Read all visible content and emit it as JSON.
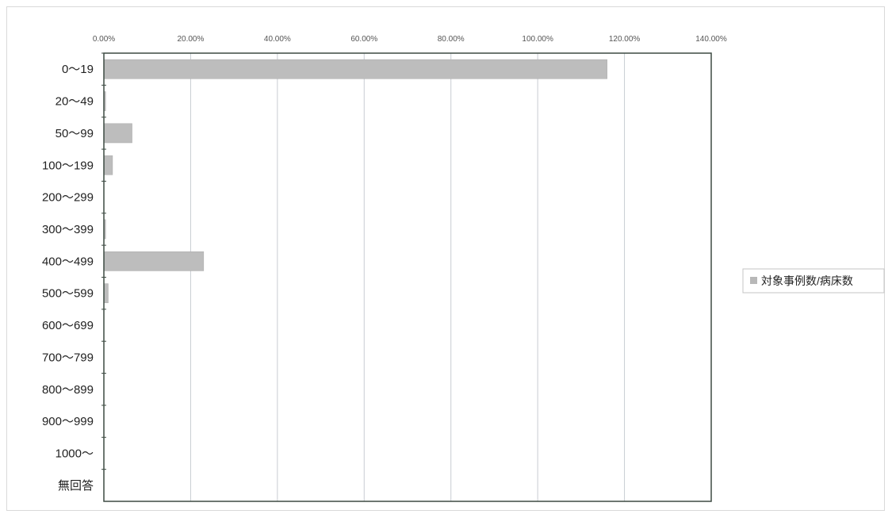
{
  "chart_data": {
    "type": "bar",
    "orientation": "horizontal",
    "categories": [
      "0～19",
      "20～49",
      "50～99",
      "100～199",
      "200～299",
      "300～399",
      "400～499",
      "500～599",
      "600～699",
      "700～799",
      "800～899",
      "900～999",
      "1000～",
      "無回答"
    ],
    "series": [
      {
        "name": "対象事例数/病床数",
        "values": [
          116.0,
          0.4,
          6.5,
          2.0,
          0.0,
          0.4,
          23.0,
          1.0,
          0.0,
          0.0,
          0.0,
          0.0,
          0.0,
          0.0
        ],
        "color": "#bdbdbd"
      }
    ],
    "x_ticks": [
      "0.00%",
      "20.00%",
      "40.00%",
      "60.00%",
      "80.00%",
      "100.00%",
      "120.00%",
      "140.00%"
    ],
    "xlim": [
      0,
      140
    ],
    "x_axis_position": "top",
    "grid": true,
    "legend_position": "right"
  }
}
